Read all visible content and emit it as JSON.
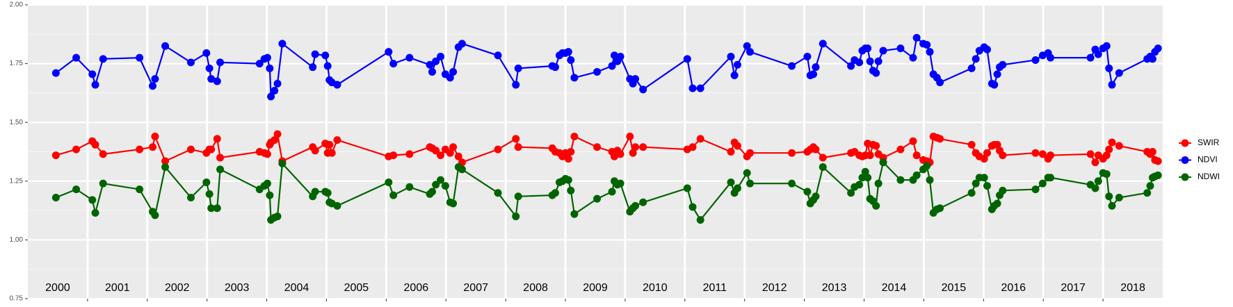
{
  "chart_data": {
    "type": "line",
    "x": [
      2000.47,
      2000.81,
      2001.08,
      2001.13,
      2001.26,
      2001.87,
      2002.09,
      2002.13,
      2002.3,
      2002.73,
      2002.99,
      2003.04,
      2003.07,
      2003.17,
      2003.22,
      2003.88,
      2003.96,
      2004.01,
      2004.05,
      2004.07,
      2004.13,
      2004.18,
      2004.26,
      2004.77,
      2004.81,
      2004.98,
      2005.02,
      2005.05,
      2005.09,
      2005.18,
      2006.04,
      2006.12,
      2006.39,
      2006.73,
      2006.77,
      2006.83,
      2006.91,
      2006.99,
      2007.07,
      2007.12,
      2007.21,
      2007.27,
      2007.87,
      2008.17,
      2008.21,
      2008.78,
      2008.83,
      2008.9,
      2008.95,
      2009.0,
      2009.05,
      2009.09,
      2009.15,
      2009.53,
      2009.78,
      2009.82,
      2009.87,
      2009.92,
      2010.08,
      2010.13,
      2010.17,
      2010.3,
      2011.04,
      2011.13,
      2011.26,
      2011.77,
      2011.83,
      2011.88,
      2012.04,
      2012.09,
      2012.79,
      2013.05,
      2013.1,
      2013.15,
      2013.19,
      2013.31,
      2013.78,
      2013.84,
      2013.92,
      2013.97,
      2014.02,
      2014.06,
      2014.1,
      2014.15,
      2014.2,
      2014.24,
      2014.32,
      2014.61,
      2014.82,
      2014.88,
      2014.99,
      2015.05,
      2015.1,
      2015.16,
      2015.22,
      2015.27,
      2015.8,
      2015.87,
      2015.93,
      2016.01,
      2016.06,
      2016.14,
      2016.18,
      2016.23,
      2016.27,
      2016.32,
      2016.87,
      2016.99,
      2017.08,
      2017.12,
      2017.79,
      2017.87,
      2017.92,
      2018.0,
      2018.06,
      2018.1,
      2018.15,
      2018.27,
      2018.74,
      2018.79,
      2018.83,
      2018.87,
      2018.92
    ],
    "series": [
      {
        "name": "SWIR",
        "color": "#ff0000",
        "values": [
          1.36,
          1.385,
          1.42,
          1.405,
          1.365,
          1.385,
          1.395,
          1.44,
          1.335,
          1.385,
          1.37,
          1.385,
          1.385,
          1.43,
          1.35,
          1.375,
          1.37,
          1.365,
          1.405,
          1.415,
          1.425,
          1.45,
          1.335,
          1.395,
          1.38,
          1.41,
          1.37,
          1.405,
          1.37,
          1.425,
          1.355,
          1.36,
          1.365,
          1.395,
          1.39,
          1.38,
          1.36,
          1.385,
          1.37,
          1.395,
          1.355,
          1.33,
          1.385,
          1.43,
          1.395,
          1.39,
          1.375,
          1.37,
          1.355,
          1.37,
          1.345,
          1.375,
          1.44,
          1.395,
          1.375,
          1.355,
          1.38,
          1.365,
          1.44,
          1.37,
          1.395,
          1.395,
          1.385,
          1.395,
          1.43,
          1.375,
          1.415,
          1.4,
          1.355,
          1.37,
          1.37,
          1.375,
          1.385,
          1.395,
          1.385,
          1.35,
          1.37,
          1.375,
          1.36,
          1.355,
          1.36,
          1.41,
          1.36,
          1.405,
          1.4,
          1.365,
          1.35,
          1.385,
          1.42,
          1.36,
          1.34,
          1.335,
          1.33,
          1.44,
          1.435,
          1.43,
          1.405,
          1.37,
          1.355,
          1.345,
          1.37,
          1.4,
          1.405,
          1.405,
          1.38,
          1.36,
          1.37,
          1.365,
          1.345,
          1.36,
          1.365,
          1.33,
          1.36,
          1.345,
          1.36,
          1.385,
          1.415,
          1.4,
          1.375,
          1.365,
          1.375,
          1.34,
          1.335
        ]
      },
      {
        "name": "NDVI",
        "color": "#0000ff",
        "values": [
          1.71,
          1.775,
          1.705,
          1.66,
          1.77,
          1.775,
          1.655,
          1.685,
          1.825,
          1.755,
          1.795,
          1.73,
          1.685,
          1.675,
          1.755,
          1.75,
          1.77,
          1.775,
          1.73,
          1.61,
          1.635,
          1.665,
          1.835,
          1.735,
          1.79,
          1.785,
          1.74,
          1.68,
          1.67,
          1.66,
          1.8,
          1.75,
          1.775,
          1.745,
          1.715,
          1.76,
          1.78,
          1.705,
          1.69,
          1.715,
          1.82,
          1.835,
          1.785,
          1.66,
          1.73,
          1.74,
          1.735,
          1.785,
          1.795,
          1.795,
          1.8,
          1.765,
          1.69,
          1.715,
          1.74,
          1.785,
          1.76,
          1.78,
          1.685,
          1.665,
          1.685,
          1.64,
          1.77,
          1.645,
          1.645,
          1.78,
          1.7,
          1.745,
          1.825,
          1.8,
          1.74,
          1.78,
          1.7,
          1.705,
          1.735,
          1.835,
          1.74,
          1.765,
          1.755,
          1.805,
          1.815,
          1.815,
          1.76,
          1.72,
          1.71,
          1.76,
          1.805,
          1.815,
          1.775,
          1.86,
          1.835,
          1.83,
          1.8,
          1.705,
          1.69,
          1.67,
          1.73,
          1.77,
          1.805,
          1.82,
          1.81,
          1.665,
          1.66,
          1.705,
          1.735,
          1.745,
          1.765,
          1.785,
          1.795,
          1.775,
          1.775,
          1.81,
          1.79,
          1.815,
          1.825,
          1.73,
          1.66,
          1.71,
          1.77,
          1.78,
          1.77,
          1.8,
          1.815
        ]
      },
      {
        "name": "NDWI",
        "color": "#006400",
        "values": [
          1.18,
          1.215,
          1.17,
          1.115,
          1.24,
          1.215,
          1.12,
          1.105,
          1.31,
          1.18,
          1.245,
          1.195,
          1.135,
          1.135,
          1.3,
          1.215,
          1.23,
          1.24,
          1.19,
          1.085,
          1.095,
          1.1,
          1.325,
          1.185,
          1.205,
          1.205,
          1.2,
          1.16,
          1.155,
          1.145,
          1.245,
          1.19,
          1.225,
          1.195,
          1.205,
          1.235,
          1.255,
          1.23,
          1.16,
          1.155,
          1.31,
          1.3,
          1.2,
          1.1,
          1.185,
          1.19,
          1.2,
          1.245,
          1.25,
          1.26,
          1.255,
          1.21,
          1.11,
          1.175,
          1.205,
          1.25,
          1.235,
          1.24,
          1.12,
          1.135,
          1.145,
          1.16,
          1.22,
          1.14,
          1.085,
          1.245,
          1.2,
          1.22,
          1.285,
          1.24,
          1.24,
          1.205,
          1.155,
          1.17,
          1.185,
          1.31,
          1.2,
          1.225,
          1.235,
          1.265,
          1.29,
          1.265,
          1.175,
          1.165,
          1.145,
          1.24,
          1.33,
          1.255,
          1.255,
          1.275,
          1.3,
          1.315,
          1.255,
          1.115,
          1.13,
          1.135,
          1.2,
          1.24,
          1.265,
          1.265,
          1.23,
          1.13,
          1.145,
          1.155,
          1.19,
          1.21,
          1.215,
          1.24,
          1.265,
          1.265,
          1.235,
          1.22,
          1.25,
          1.285,
          1.28,
          1.185,
          1.145,
          1.18,
          1.2,
          1.23,
          1.265,
          1.27,
          1.275
        ]
      }
    ],
    "year_labels": [
      "2000",
      "2001",
      "2002",
      "2003",
      "2004",
      "2005",
      "2006",
      "2007",
      "2008",
      "2009",
      "2010",
      "2011",
      "2012",
      "2013",
      "2014",
      "2015",
      "2016",
      "2017",
      "2018"
    ],
    "xlim": [
      2000,
      2019
    ],
    "xticks": [
      2001,
      2002,
      2003,
      2004,
      2005,
      2006,
      2007,
      2008,
      2009,
      2010,
      2011,
      2012,
      2013,
      2014,
      2015,
      2016,
      2017,
      2018
    ],
    "ylim": [
      0.75,
      2.0
    ],
    "yticks": [
      {
        "value": 0.75,
        "label": "0.75"
      },
      {
        "value": 1.0,
        "label": "1.00"
      },
      {
        "value": 1.25,
        "label": "1.25"
      },
      {
        "value": 1.5,
        "label": "1.50"
      },
      {
        "value": 1.75,
        "label": "1.75"
      },
      {
        "value": 2.0,
        "label": "2.00"
      }
    ],
    "grid": true,
    "legend": "right"
  }
}
